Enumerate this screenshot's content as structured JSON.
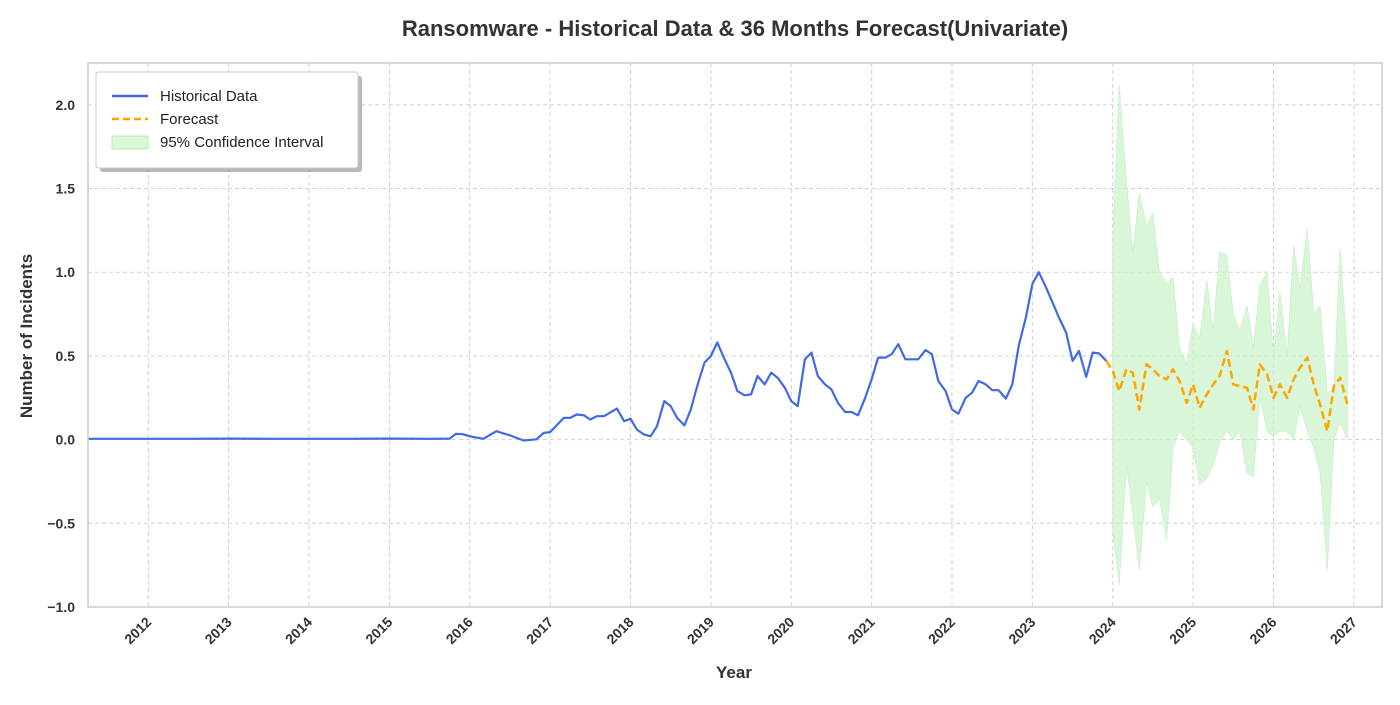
{
  "chart_data": {
    "type": "line",
    "title": "Ransomware - Historical Data & 36 Months Forecast(Univariate)",
    "xlabel": "Year",
    "ylabel": "Number of Incidents",
    "xlim": [
      2011.25,
      2027.35
    ],
    "ylim": [
      -1.0,
      2.25
    ],
    "x_ticks": [
      2012,
      2013,
      2014,
      2015,
      2016,
      2017,
      2018,
      2019,
      2020,
      2021,
      2022,
      2023,
      2024,
      2025,
      2026,
      2027
    ],
    "x_tick_labels": [
      "2012",
      "2013",
      "2014",
      "2015",
      "2016",
      "2017",
      "2018",
      "2019",
      "2020",
      "2021",
      "2022",
      "2023",
      "2024",
      "2025",
      "2026",
      "2027"
    ],
    "y_ticks": [
      -1.0,
      -0.5,
      0.0,
      0.5,
      1.0,
      1.5,
      2.0
    ],
    "y_tick_labels": [
      "−1.0",
      "−0.5",
      "0.0",
      "0.5",
      "1.0",
      "1.5",
      "2.0"
    ],
    "grid": true,
    "legend_position": "top-left",
    "legend": [
      {
        "label": "Historical Data",
        "kind": "line",
        "color": "#4169E1"
      },
      {
        "label": "Forecast",
        "kind": "dashed",
        "color": "#FFA500"
      },
      {
        "label": "95% Confidence Interval",
        "kind": "patch",
        "color": "#d9f7d9"
      }
    ],
    "series": [
      {
        "name": "Historical Data",
        "color": "#4169E1",
        "points": [
          [
            2011.25,
            0.005
          ],
          [
            2011.5,
            0.005
          ],
          [
            2011.75,
            0.005
          ],
          [
            2012.0,
            0.005
          ],
          [
            2012.5,
            0.005
          ],
          [
            2013.0,
            0.006
          ],
          [
            2013.5,
            0.005
          ],
          [
            2014.0,
            0.005
          ],
          [
            2014.5,
            0.005
          ],
          [
            2015.0,
            0.006
          ],
          [
            2015.5,
            0.005
          ],
          [
            2015.75,
            0.006
          ],
          [
            2015.83,
            0.035
          ],
          [
            2015.92,
            0.032
          ],
          [
            2016.0,
            0.02
          ],
          [
            2016.17,
            0.005
          ],
          [
            2016.33,
            0.05
          ],
          [
            2016.5,
            0.025
          ],
          [
            2016.67,
            -0.005
          ],
          [
            2016.83,
            0.002
          ],
          [
            2016.92,
            0.04
          ],
          [
            2017.0,
            0.045
          ],
          [
            2017.17,
            0.13
          ],
          [
            2017.25,
            0.13
          ],
          [
            2017.33,
            0.15
          ],
          [
            2017.42,
            0.145
          ],
          [
            2017.5,
            0.12
          ],
          [
            2017.58,
            0.14
          ],
          [
            2017.67,
            0.14
          ],
          [
            2017.83,
            0.185
          ],
          [
            2017.92,
            0.11
          ],
          [
            2018.0,
            0.125
          ],
          [
            2018.08,
            0.06
          ],
          [
            2018.17,
            0.03
          ],
          [
            2018.25,
            0.02
          ],
          [
            2018.33,
            0.08
          ],
          [
            2018.42,
            0.23
          ],
          [
            2018.5,
            0.2
          ],
          [
            2018.58,
            0.13
          ],
          [
            2018.67,
            0.085
          ],
          [
            2018.75,
            0.18
          ],
          [
            2018.83,
            0.32
          ],
          [
            2018.92,
            0.46
          ],
          [
            2019.0,
            0.5
          ],
          [
            2019.08,
            0.58
          ],
          [
            2019.17,
            0.48
          ],
          [
            2019.25,
            0.4
          ],
          [
            2019.33,
            0.29
          ],
          [
            2019.42,
            0.265
          ],
          [
            2019.5,
            0.27
          ],
          [
            2019.58,
            0.38
          ],
          [
            2019.67,
            0.33
          ],
          [
            2019.75,
            0.4
          ],
          [
            2019.83,
            0.37
          ],
          [
            2019.92,
            0.31
          ],
          [
            2020.0,
            0.23
          ],
          [
            2020.08,
            0.2
          ],
          [
            2020.17,
            0.48
          ],
          [
            2020.25,
            0.52
          ],
          [
            2020.33,
            0.38
          ],
          [
            2020.42,
            0.33
          ],
          [
            2020.5,
            0.3
          ],
          [
            2020.58,
            0.22
          ],
          [
            2020.67,
            0.165
          ],
          [
            2020.75,
            0.165
          ],
          [
            2020.83,
            0.145
          ],
          [
            2020.92,
            0.25
          ],
          [
            2021.0,
            0.36
          ],
          [
            2021.08,
            0.49
          ],
          [
            2021.17,
            0.49
          ],
          [
            2021.25,
            0.51
          ],
          [
            2021.33,
            0.57
          ],
          [
            2021.42,
            0.48
          ],
          [
            2021.5,
            0.48
          ],
          [
            2021.58,
            0.48
          ],
          [
            2021.67,
            0.535
          ],
          [
            2021.75,
            0.51
          ],
          [
            2021.83,
            0.35
          ],
          [
            2021.92,
            0.29
          ],
          [
            2022.0,
            0.18
          ],
          [
            2022.08,
            0.155
          ],
          [
            2022.17,
            0.25
          ],
          [
            2022.25,
            0.28
          ],
          [
            2022.33,
            0.35
          ],
          [
            2022.42,
            0.33
          ],
          [
            2022.5,
            0.295
          ],
          [
            2022.58,
            0.295
          ],
          [
            2022.67,
            0.245
          ],
          [
            2022.75,
            0.33
          ],
          [
            2022.83,
            0.56
          ],
          [
            2022.92,
            0.73
          ],
          [
            2023.0,
            0.93
          ],
          [
            2023.08,
            1.0
          ],
          [
            2023.17,
            0.91
          ],
          [
            2023.25,
            0.82
          ],
          [
            2023.33,
            0.73
          ],
          [
            2023.42,
            0.64
          ],
          [
            2023.5,
            0.47
          ],
          [
            2023.58,
            0.53
          ],
          [
            2023.67,
            0.375
          ],
          [
            2023.75,
            0.52
          ],
          [
            2023.83,
            0.515
          ],
          [
            2023.92,
            0.47
          ]
        ]
      },
      {
        "name": "Forecast",
        "color": "#FFA500",
        "points": [
          [
            2023.92,
            0.47
          ],
          [
            2024.0,
            0.41
          ],
          [
            2024.08,
            0.29
          ],
          [
            2024.17,
            0.42
          ],
          [
            2024.25,
            0.4
          ],
          [
            2024.33,
            0.18
          ],
          [
            2024.42,
            0.45
          ],
          [
            2024.5,
            0.42
          ],
          [
            2024.58,
            0.38
          ],
          [
            2024.67,
            0.36
          ],
          [
            2024.75,
            0.42
          ],
          [
            2024.83,
            0.35
          ],
          [
            2024.92,
            0.22
          ],
          [
            2025.0,
            0.33
          ],
          [
            2025.08,
            0.19
          ],
          [
            2025.17,
            0.27
          ],
          [
            2025.25,
            0.33
          ],
          [
            2025.33,
            0.38
          ],
          [
            2025.42,
            0.53
          ],
          [
            2025.5,
            0.33
          ],
          [
            2025.58,
            0.32
          ],
          [
            2025.67,
            0.31
          ],
          [
            2025.75,
            0.18
          ],
          [
            2025.83,
            0.45
          ],
          [
            2025.92,
            0.39
          ],
          [
            2026.0,
            0.25
          ],
          [
            2026.08,
            0.33
          ],
          [
            2026.17,
            0.25
          ],
          [
            2026.25,
            0.36
          ],
          [
            2026.33,
            0.43
          ],
          [
            2026.42,
            0.49
          ],
          [
            2026.5,
            0.33
          ],
          [
            2026.58,
            0.21
          ],
          [
            2026.67,
            0.05
          ],
          [
            2026.75,
            0.32
          ],
          [
            2026.83,
            0.37
          ],
          [
            2026.92,
            0.21
          ]
        ]
      }
    ],
    "confidence_interval": {
      "name": "95% Confidence Interval",
      "color": "#c9f2c9",
      "x": [
        2024.0,
        2024.08,
        2024.17,
        2024.25,
        2024.33,
        2024.42,
        2024.5,
        2024.58,
        2024.67,
        2024.75,
        2024.83,
        2024.92,
        2025.0,
        2025.08,
        2025.17,
        2025.25,
        2025.33,
        2025.42,
        2025.5,
        2025.58,
        2025.67,
        2025.75,
        2025.83,
        2025.92,
        2026.0,
        2026.08,
        2026.17,
        2026.25,
        2026.33,
        2026.42,
        2026.5,
        2026.58,
        2026.67,
        2026.75,
        2026.83,
        2026.92
      ],
      "upper": [
        1.2,
        2.12,
        1.55,
        1.12,
        1.47,
        1.28,
        1.35,
        1.0,
        0.93,
        0.97,
        0.55,
        0.45,
        0.7,
        0.6,
        0.95,
        0.65,
        1.12,
        1.1,
        0.75,
        0.65,
        0.8,
        0.55,
        0.92,
        1.0,
        0.5,
        0.88,
        0.5,
        1.16,
        0.9,
        1.26,
        0.75,
        0.8,
        0.28,
        0.3,
        1.14,
        0.5
      ],
      "lower": [
        -0.55,
        -0.87,
        -0.15,
        -0.45,
        -0.78,
        -0.25,
        -0.4,
        -0.35,
        -0.6,
        -0.05,
        0.05,
        0.0,
        -0.05,
        -0.27,
        -0.23,
        -0.15,
        -0.02,
        0.05,
        0.0,
        0.05,
        -0.2,
        -0.22,
        0.25,
        0.05,
        0.02,
        0.05,
        0.05,
        0.0,
        0.2,
        0.05,
        -0.05,
        -0.2,
        -0.78,
        0.0,
        0.1,
        0.0
      ]
    }
  }
}
